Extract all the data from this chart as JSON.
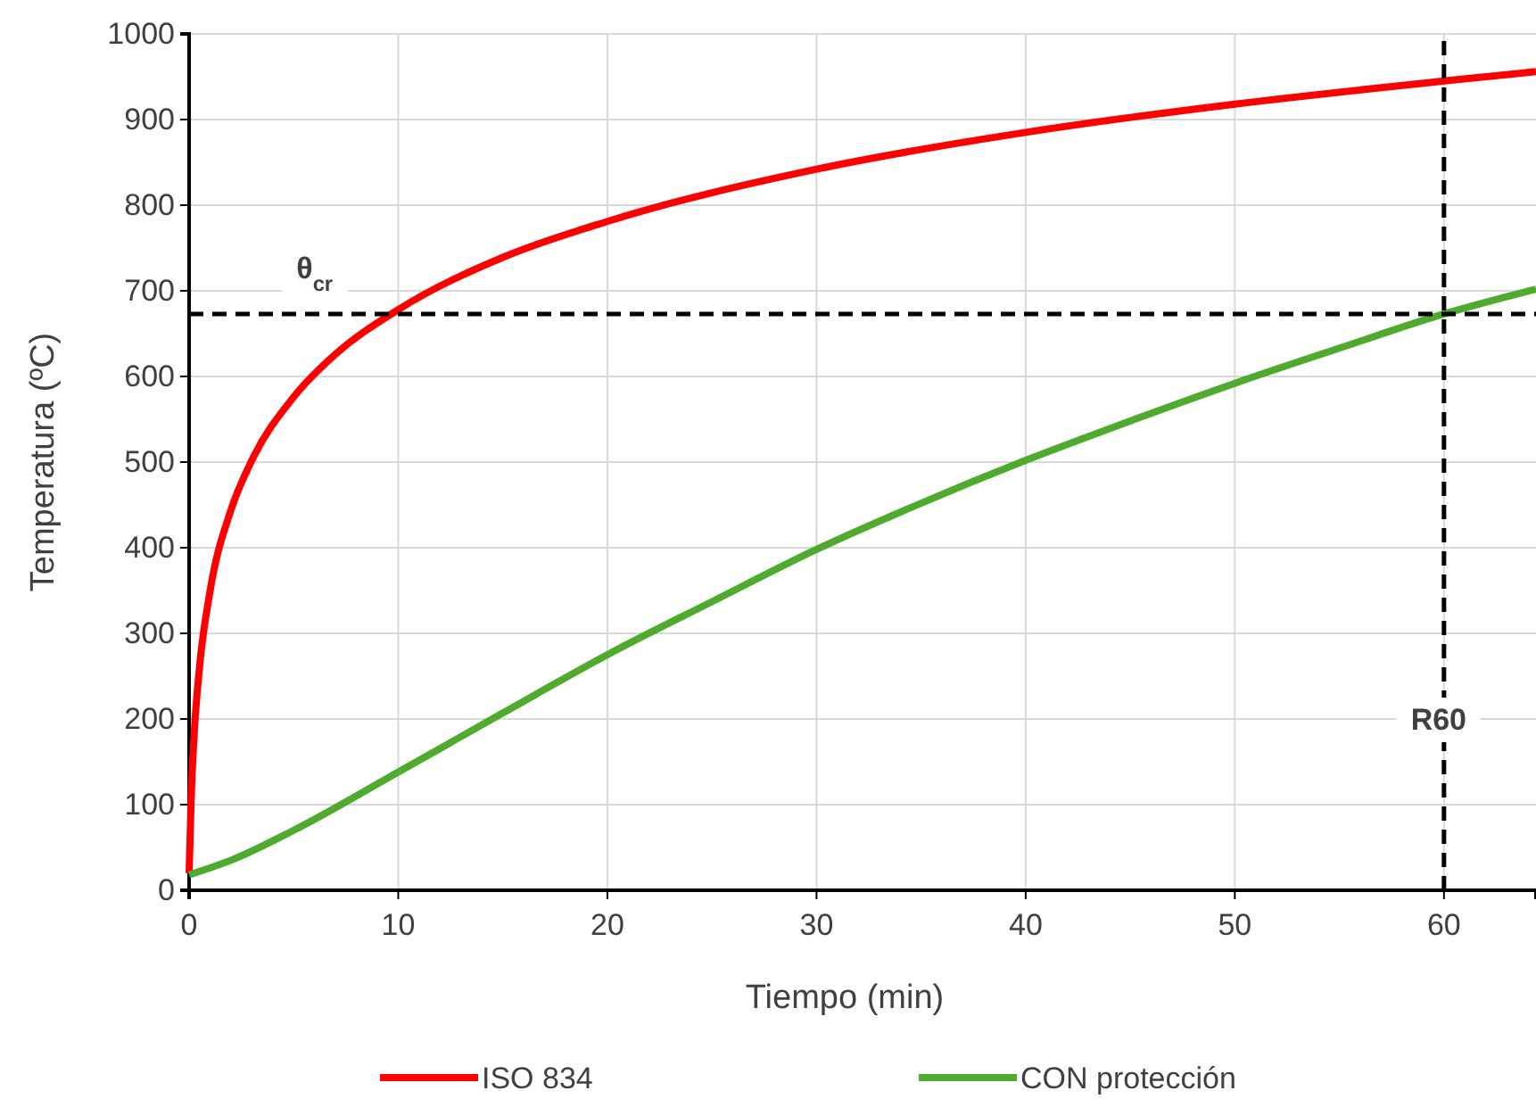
{
  "chart_data": {
    "type": "line",
    "xlabel": "Tiempo (min)",
    "ylabel": "Temperatura (ºC)",
    "xlim": [
      0,
      64.4
    ],
    "ylim": [
      0,
      1000
    ],
    "xticks": [
      0,
      10,
      20,
      30,
      40,
      50,
      60
    ],
    "yticks": [
      0,
      100,
      200,
      300,
      400,
      500,
      600,
      700,
      800,
      900,
      1000
    ],
    "grid": true,
    "legend": "bottom",
    "line_style": "solid",
    "marker": "none",
    "series": [
      {
        "name": "ISO 834",
        "color": "#ff0000",
        "x": [
          0,
          0.1,
          0.25,
          0.5,
          1,
          2,
          3,
          5,
          7,
          10,
          15,
          20,
          30,
          40,
          50,
          60,
          64.4
        ],
        "values": [
          20,
          108,
          185,
          261,
          349,
          444,
          502,
          576,
          626,
          678,
          739,
          781,
          842,
          885,
          918,
          945,
          956
        ]
      },
      {
        "name": "CON protección",
        "color": "#4eab2e",
        "x": [
          0,
          2,
          5,
          10,
          15,
          20,
          25,
          30,
          35,
          40,
          45,
          50,
          55,
          60,
          64.4
        ],
        "values": [
          18,
          35,
          70,
          138,
          207,
          275,
          337,
          398,
          452,
          502,
          548,
          592,
          633,
          673,
          702
        ]
      }
    ],
    "ref_lines": [
      {
        "axis": "y",
        "value": 673,
        "label": "θ$_{cr}$",
        "color": "#000000",
        "line_style": "dashed"
      },
      {
        "axis": "x",
        "value": 60,
        "label": "R60",
        "color": "#000000",
        "line_style": "dashed"
      }
    ]
  }
}
